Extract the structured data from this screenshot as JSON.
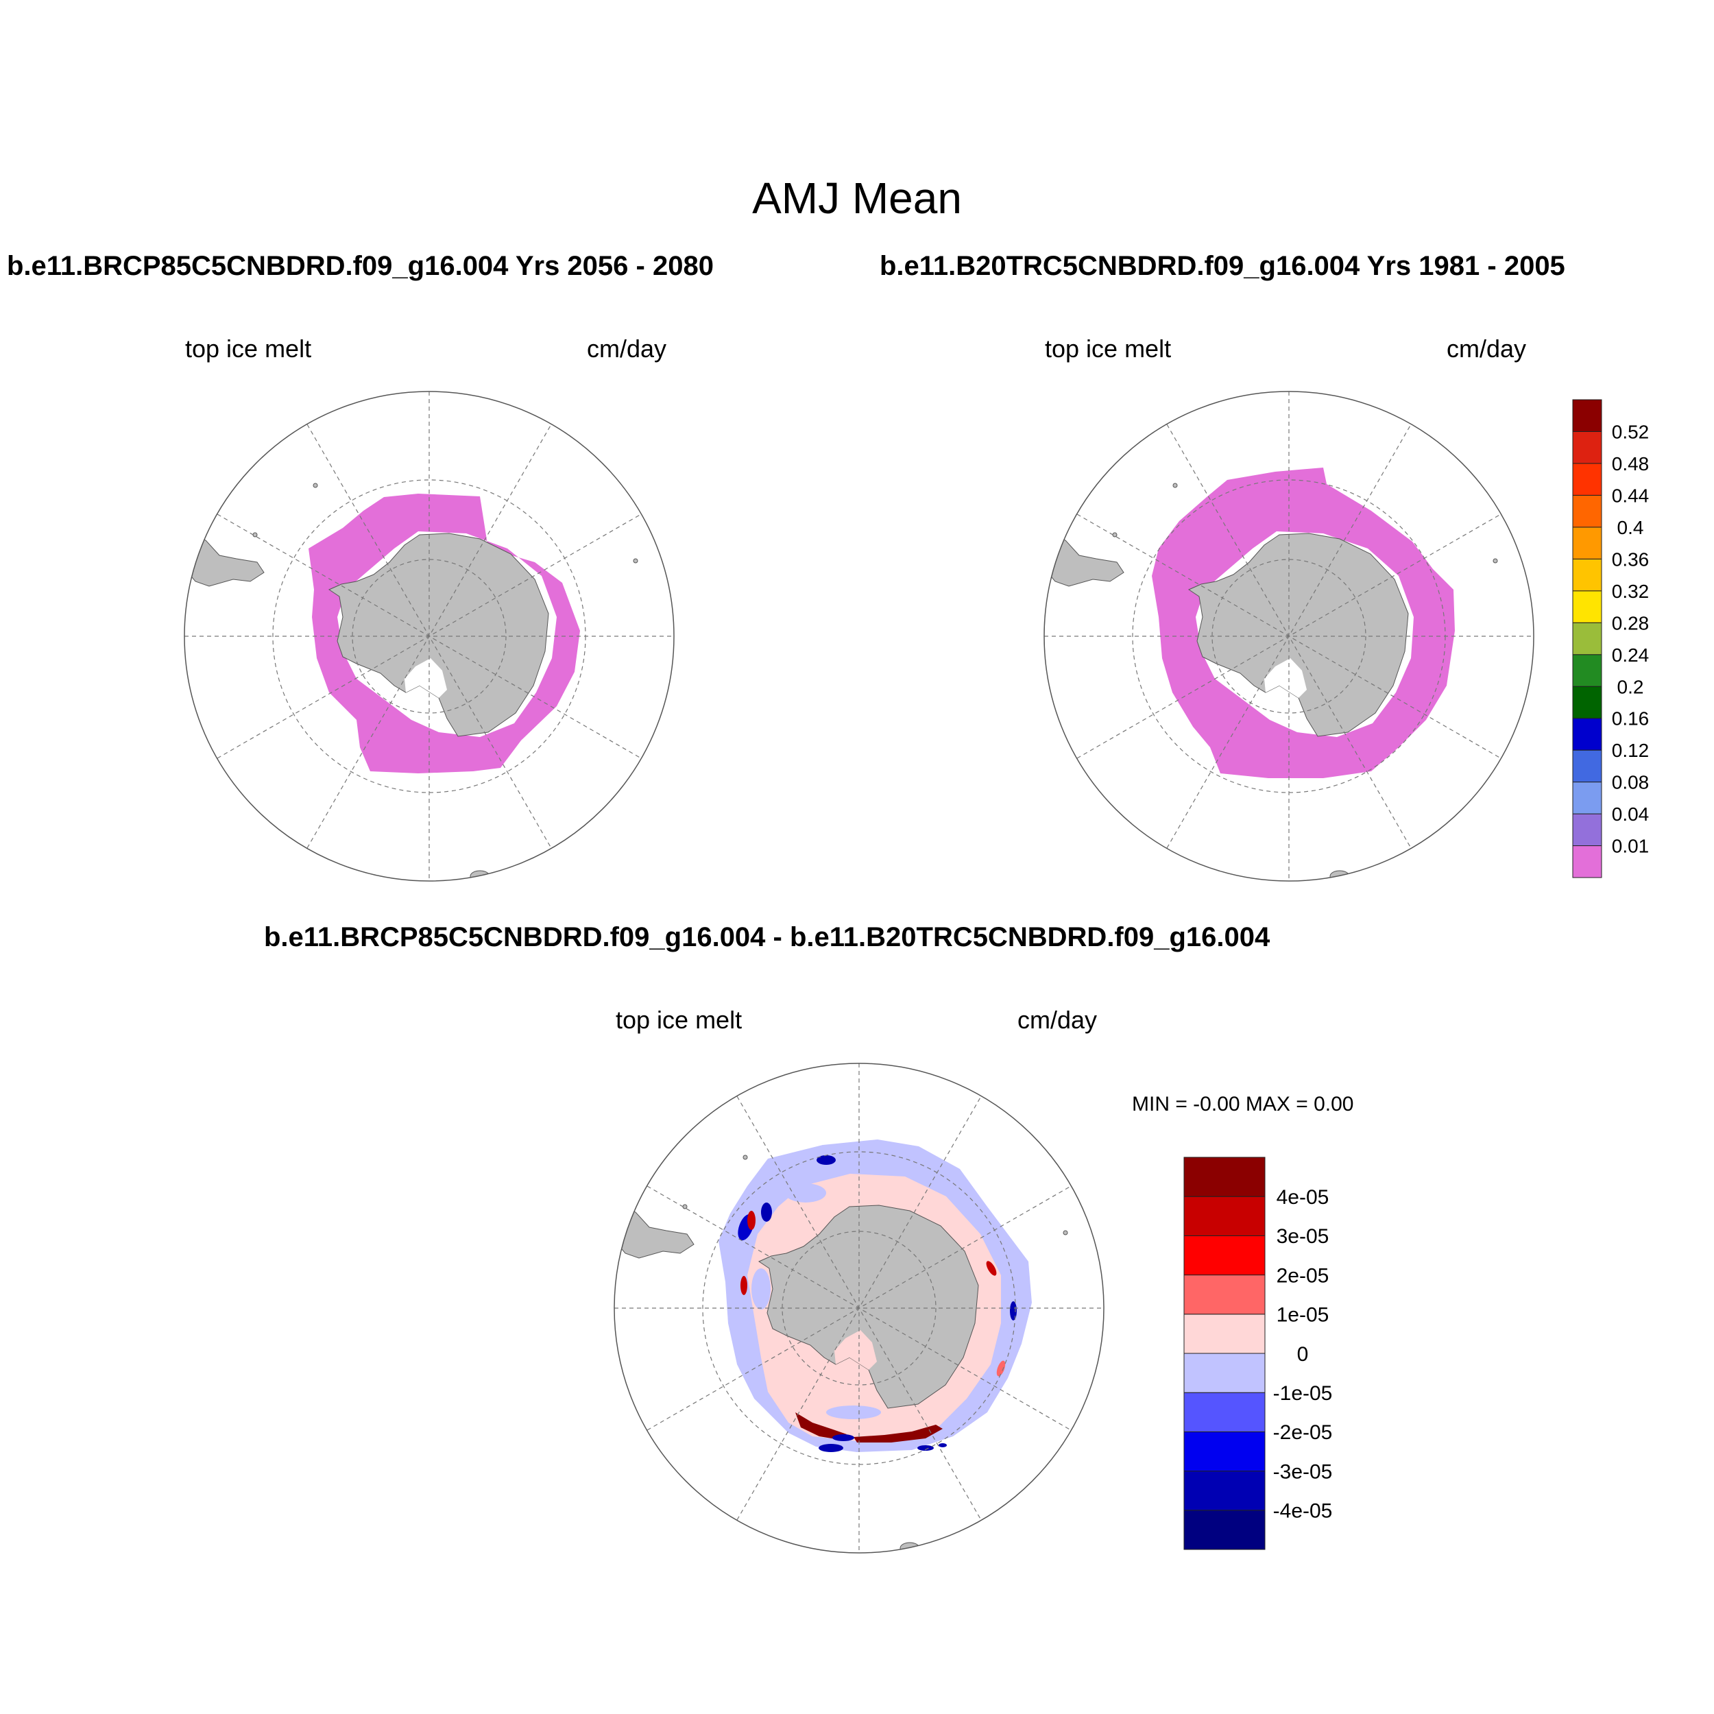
{
  "main_title": "AMJ Mean",
  "panels": [
    {
      "case_title": "b.e11.BRCP85C5CNBDRD.f09_g16.004  Yrs 2056 - 2080",
      "left_label": "top ice melt",
      "right_label": "cm/day"
    },
    {
      "case_title": "b.e11.B20TRC5CNBDRD.f09_g16.004  Yrs 1981 - 2005",
      "left_label": "top ice melt",
      "right_label": "cm/day"
    },
    {
      "case_title": "b.e11.BRCP85C5CNBDRD.f09_g16.004 - b.e11.B20TRC5CNBDRD.f09_g16.004",
      "left_label": "top ice melt",
      "right_label": "cm/day",
      "minmax": "MIN =  -0.00 MAX =   0.00"
    }
  ],
  "colors": {
    "land": "#bebebe",
    "ice_melt_fill": "#e36fd9",
    "grid": "#777777"
  },
  "colorbar_main": {
    "colors": [
      "#e36fd9",
      "#9370db",
      "#7b9cf0",
      "#4169e1",
      "#0000cd",
      "#006400",
      "#228b22",
      "#9abd3a",
      "#ffe400",
      "#ffc400",
      "#ff9900",
      "#ff6600",
      "#ff3300",
      "#dd2211",
      "#8b0000"
    ],
    "labels": [
      "0.01",
      "0.04",
      "0.08",
      "0.12",
      "0.16",
      "0.2",
      "0.24",
      "0.28",
      "0.32",
      "0.36",
      "0.4",
      "0.44",
      "0.48",
      "0.52"
    ]
  },
  "colorbar_diff": {
    "colors": [
      "#000080",
      "#0000b3",
      "#0000f0",
      "#5555ff",
      "#c1c3ff",
      "#ffd7d7",
      "#ff6666",
      "#ff0000",
      "#c80000",
      "#8b0000"
    ],
    "labels": [
      "-4e-05",
      "-3e-05",
      "-2e-05",
      "-1e-05",
      "0",
      "1e-05",
      "2e-05",
      "3e-05",
      "4e-05"
    ]
  }
}
